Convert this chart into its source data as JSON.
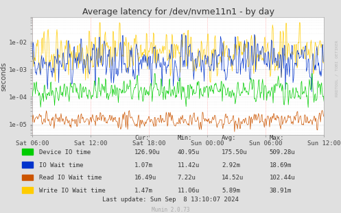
{
  "title": "Average latency for /dev/nvme11n1 - by day",
  "ylabel": "seconds",
  "background_color": "#e0e0e0",
  "plot_bg_color": "#ffffff",
  "x_tick_labels": [
    "Sat 06:00",
    "Sat 12:00",
    "Sat 18:00",
    "Sun 00:00",
    "Sun 06:00",
    "Sun 12:00"
  ],
  "y_ticks": [
    1e-05,
    0.0001,
    0.001,
    0.01
  ],
  "y_tick_labels": [
    "1e-05",
    "1e-04",
    "1e-03",
    "1e-02"
  ],
  "ylim": [
    4e-06,
    0.08
  ],
  "legend": [
    {
      "label": "Device IO time",
      "color": "#00cc00"
    },
    {
      "label": "IO Wait time",
      "color": "#0033cc"
    },
    {
      "label": "Read IO Wait time",
      "color": "#cc5500"
    },
    {
      "label": "Write IO Wait time",
      "color": "#ffcc00"
    }
  ],
  "stats_headers": [
    "Cur:",
    "Min:",
    "Avg:",
    "Max:"
  ],
  "stats": [
    [
      "Device IO time",
      "126.90u",
      "40.95u",
      "175.50u",
      "509.28u"
    ],
    [
      "IO Wait time",
      "1.07m",
      "11.42u",
      "2.92m",
      "18.69m"
    ],
    [
      "Read IO Wait time",
      "16.49u",
      "7.22u",
      "14.52u",
      "102.44u"
    ],
    [
      "Write IO Wait time",
      "1.47m",
      "11.06u",
      "5.89m",
      "38.91m"
    ]
  ],
  "last_update": "Last update: Sun Sep  8 13:10:07 2024",
  "munin_version": "Munin 2.0.73",
  "rrdtool_label": "RRDTOOL / TOBI OETIKER",
  "n_points": 500
}
